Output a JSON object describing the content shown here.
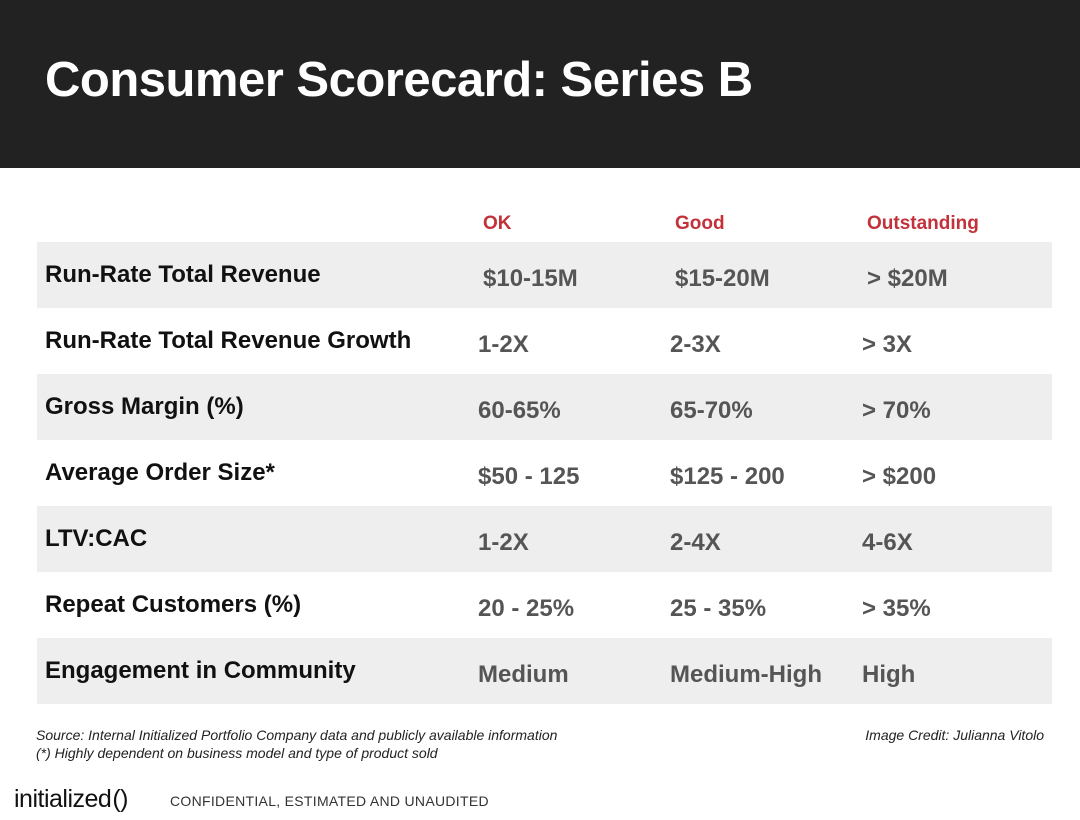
{
  "title": "Consumer Scorecard: Series B",
  "columns": [
    "OK",
    "Good",
    "Outstanding"
  ],
  "rows": [
    {
      "label": "Run-Rate Total Revenue",
      "values": [
        "$10-15M",
        "$15-20M",
        "> $20M"
      ]
    },
    {
      "label": "Run-Rate Total Revenue Growth",
      "values": [
        "1-2X",
        "2-3X",
        "> 3X"
      ]
    },
    {
      "label": "Gross Margin (%)",
      "values": [
        "60-65%",
        "65-70%",
        "> 70%"
      ]
    },
    {
      "label": "Average Order Size*",
      "values": [
        "$50 - 125",
        "$125 - 200",
        "> $200"
      ]
    },
    {
      "label": "LTV:CAC",
      "values": [
        "1-2X",
        "2-4X",
        "4-6X"
      ]
    },
    {
      "label": "Repeat Customers (%)",
      "values": [
        "20 - 25%",
        "25 - 35%",
        "> 35%"
      ]
    },
    {
      "label": "Engagement in Community",
      "values": [
        "Medium",
        "Medium-High",
        "High"
      ]
    }
  ],
  "source_note": "Source: Internal Initialized Portfolio Company data and publicly available information",
  "footnote": "(*) Highly dependent on business model and type of product sold",
  "image_credit": "Image Credit: Julianna Vitolo",
  "footer": {
    "logo_text": "initialized",
    "logo_mark": "()",
    "confidential": "CONFIDENTIAL, ESTIMATED AND UNAUDITED"
  },
  "colors": {
    "header_bg": "#222222",
    "accent": "#c3323a",
    "row_shade": "#eeeeee",
    "value_text": "#555555"
  }
}
